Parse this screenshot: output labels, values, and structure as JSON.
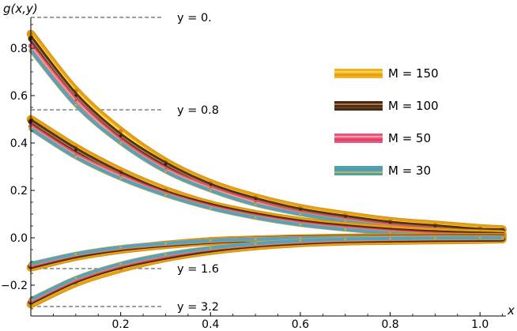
{
  "chart_data": {
    "type": "line",
    "title": "",
    "xlabel": "x",
    "ylabel": "g(x,y)",
    "xlim": [
      0,
      1.07
    ],
    "ylim": [
      -0.33,
      0.93
    ],
    "xticks": [
      0.2,
      0.4,
      0.6,
      0.8,
      1.0
    ],
    "xtick_labels": [
      "0.2",
      "0.4",
      "0.6",
      "0.8",
      "1.0"
    ],
    "yticks": [
      -0.2,
      0.0,
      0.2,
      0.4,
      0.6,
      0.8
    ],
    "ytick_labels": [
      "−0.2",
      "0.0",
      "0.2",
      "0.4",
      "0.6",
      "0.8"
    ],
    "x": [
      0.0,
      0.1,
      0.2,
      0.3,
      0.4,
      0.5,
      0.6,
      0.7,
      0.8,
      0.9,
      1.0,
      1.05
    ],
    "curve_groups": [
      {
        "y_value": "0",
        "label": "y = 0.",
        "reference_level": 0.93,
        "series": [
          {
            "name": "M = 150",
            "values": [
              0.86,
              0.62,
              0.45,
              0.32,
              0.23,
              0.17,
              0.125,
              0.095,
              0.07,
              0.055,
              0.04,
              0.035
            ]
          },
          {
            "name": "M = 100",
            "values": [
              0.84,
              0.6,
              0.43,
              0.31,
              0.22,
              0.16,
              0.115,
              0.085,
              0.06,
              0.045,
              0.03,
              0.028
            ]
          },
          {
            "name": "M = 50",
            "values": [
              0.81,
              0.58,
              0.41,
              0.29,
              0.21,
              0.15,
              0.105,
              0.075,
              0.05,
              0.035,
              0.02,
              0.015
            ]
          },
          {
            "name": "M = 30",
            "values": [
              0.79,
              0.56,
              0.4,
              0.28,
              0.2,
              0.14,
              0.1,
              0.07,
              0.045,
              0.03,
              0.018,
              0.012
            ]
          }
        ]
      },
      {
        "y_value": "0.8",
        "label": "y = 0.8",
        "reference_level": 0.54,
        "series": [
          {
            "name": "M = 150",
            "values": [
              0.5,
              0.38,
              0.28,
              0.2,
              0.14,
              0.1,
              0.07,
              0.05,
              0.035,
              0.025,
              0.018,
              0.015
            ]
          },
          {
            "name": "M = 100",
            "values": [
              0.49,
              0.37,
              0.27,
              0.19,
              0.135,
              0.095,
              0.065,
              0.045,
              0.03,
              0.02,
              0.014,
              0.012
            ]
          },
          {
            "name": "M = 50",
            "values": [
              0.47,
              0.35,
              0.26,
              0.185,
              0.13,
              0.09,
              0.06,
              0.04,
              0.025,
              0.015,
              0.01,
              0.008
            ]
          },
          {
            "name": "M = 30",
            "values": [
              0.46,
              0.34,
              0.25,
              0.18,
              0.125,
              0.085,
              0.055,
              0.035,
              0.02,
              0.01,
              0.006,
              0.005
            ]
          }
        ]
      },
      {
        "y_value": "1.6",
        "label": "y = 1.6",
        "reference_level": -0.13,
        "series": [
          {
            "name": "M = 150",
            "values": [
              -0.125,
              -0.08,
              -0.05,
              -0.03,
              -0.015,
              -0.008,
              -0.003,
              0.0,
              0.002,
              0.003,
              0.003,
              0.003
            ]
          },
          {
            "name": "M = 100",
            "values": [
              -0.12,
              -0.075,
              -0.045,
              -0.027,
              -0.014,
              -0.007,
              -0.002,
              0.0,
              0.002,
              0.003,
              0.003,
              0.003
            ]
          },
          {
            "name": "M = 50",
            "values": [
              -0.115,
              -0.07,
              -0.042,
              -0.025,
              -0.013,
              -0.006,
              -0.002,
              0.0,
              0.002,
              0.002,
              0.002,
              0.002
            ]
          },
          {
            "name": "M = 30",
            "values": [
              -0.11,
              -0.068,
              -0.04,
              -0.024,
              -0.012,
              -0.006,
              -0.002,
              0.0,
              0.001,
              0.002,
              0.002,
              0.002
            ]
          }
        ]
      },
      {
        "y_value": "3.2",
        "label": "y = 3.2",
        "reference_level": -0.29,
        "series": [
          {
            "name": "M = 150",
            "values": [
              -0.28,
              -0.19,
              -0.13,
              -0.085,
              -0.055,
              -0.035,
              -0.022,
              -0.015,
              -0.012,
              -0.01,
              -0.008,
              -0.006
            ]
          },
          {
            "name": "M = 100",
            "values": [
              -0.27,
              -0.18,
              -0.12,
              -0.08,
              -0.05,
              -0.03,
              -0.018,
              -0.011,
              -0.008,
              -0.006,
              -0.005,
              -0.004
            ]
          },
          {
            "name": "M = 50",
            "values": [
              -0.265,
              -0.175,
              -0.115,
              -0.075,
              -0.045,
              -0.027,
              -0.015,
              -0.008,
              -0.004,
              -0.002,
              -0.001,
              0.0
            ]
          },
          {
            "name": "M = 30",
            "values": [
              -0.26,
              -0.17,
              -0.11,
              -0.07,
              -0.043,
              -0.025,
              -0.013,
              -0.006,
              -0.003,
              -0.001,
              0.0,
              0.0
            ]
          }
        ]
      }
    ],
    "legend": {
      "placement": "right",
      "entries": [
        {
          "label": "M = 150",
          "colors": [
            "#f3b021",
            "#ffd84a",
            "#e69b12"
          ]
        },
        {
          "label": "M = 100",
          "colors": [
            "#4a2a12",
            "#a8784a",
            "#6b4220"
          ]
        },
        {
          "label": "M = 50",
          "colors": [
            "#e8557d",
            "#f3a0a0",
            "#d8406a"
          ]
        },
        {
          "label": "M = 30",
          "colors": [
            "#4aa8a0",
            "#5b8ed8",
            "#c8b060"
          ]
        }
      ]
    },
    "series_styles": {
      "M = 150": {
        "color": "#e8a017",
        "highlight": "#ffd84a",
        "outline": "#c98a0e",
        "width": 9
      },
      "M = 100": {
        "color": "#5a3416",
        "highlight": "#a8784a",
        "outline": "#3a200a",
        "width": 5.5
      },
      "M = 50": {
        "color": "#e8557d",
        "highlight": "#f7b0b0",
        "outline": "#d2456c",
        "width": 4.5
      },
      "M = 30": {
        "color": "#4ea8b0",
        "highlight": "#6e90de",
        "outline": "#c9a74a",
        "width": 4
      }
    },
    "reference_line_color": "#808080",
    "grid": false
  }
}
